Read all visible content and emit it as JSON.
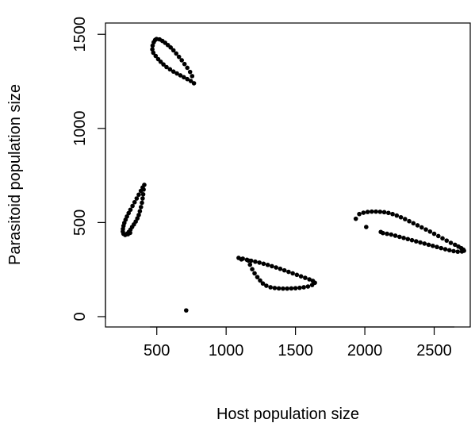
{
  "chart_data": {
    "type": "scatter",
    "xlabel": "Host population size",
    "ylabel": "Parasitoid population size",
    "xlim": [
      130,
      2760
    ],
    "ylim": [
      -55,
      1560
    ],
    "xticks": [
      500,
      1000,
      1500,
      2000,
      2500
    ],
    "yticks": [
      0,
      500,
      1000,
      1500
    ],
    "grid": false,
    "point_color": "#000000",
    "series": [
      {
        "points": [
          [
            498,
            1475
          ],
          [
            520,
            1473
          ],
          [
            540,
            1465
          ],
          [
            560,
            1455
          ],
          [
            580,
            1443
          ],
          [
            600,
            1430
          ],
          [
            620,
            1415
          ],
          [
            640,
            1398
          ],
          [
            660,
            1380
          ],
          [
            680,
            1362
          ],
          [
            700,
            1342
          ],
          [
            720,
            1322
          ],
          [
            740,
            1300
          ],
          [
            755,
            1278
          ],
          [
            768,
            1240
          ],
          [
            745,
            1252
          ],
          [
            720,
            1262
          ],
          [
            695,
            1272
          ],
          [
            670,
            1282
          ],
          [
            645,
            1292
          ],
          [
            620,
            1302
          ],
          [
            595,
            1314
          ],
          [
            570,
            1326
          ],
          [
            548,
            1340
          ],
          [
            528,
            1354
          ],
          [
            510,
            1368
          ],
          [
            492,
            1385
          ],
          [
            475,
            1402
          ],
          [
            468,
            1420
          ],
          [
            470,
            1440
          ],
          [
            478,
            1458
          ],
          [
            488,
            1470
          ],
          [
            410,
            700
          ],
          [
            405,
            675
          ],
          [
            402,
            650
          ],
          [
            398,
            628
          ],
          [
            393,
            605
          ],
          [
            386,
            582
          ],
          [
            378,
            560
          ],
          [
            370,
            540
          ],
          [
            360,
            522
          ],
          [
            348,
            505
          ],
          [
            335,
            490
          ],
          [
            322,
            476
          ],
          [
            310,
            462
          ],
          [
            298,
            450
          ],
          [
            285,
            440
          ],
          [
            272,
            434
          ],
          [
            260,
            440
          ],
          [
            255,
            452
          ],
          [
            256,
            466
          ],
          [
            260,
            482
          ],
          [
            266,
            498
          ],
          [
            275,
            515
          ],
          [
            285,
            532
          ],
          [
            297,
            550
          ],
          [
            310,
            568
          ],
          [
            325,
            588
          ],
          [
            340,
            608
          ],
          [
            355,
            628
          ],
          [
            370,
            648
          ],
          [
            385,
            668
          ],
          [
            398,
            686
          ],
          [
            292,
            438
          ],
          [
            308,
            445
          ],
          [
            1090,
            312
          ],
          [
            1120,
            308
          ],
          [
            1150,
            302
          ],
          [
            1180,
            297
          ],
          [
            1210,
            292
          ],
          [
            1240,
            287
          ],
          [
            1270,
            281
          ],
          [
            1300,
            275
          ],
          [
            1330,
            268
          ],
          [
            1360,
            261
          ],
          [
            1390,
            254
          ],
          [
            1420,
            246
          ],
          [
            1450,
            238
          ],
          [
            1480,
            230
          ],
          [
            1510,
            222
          ],
          [
            1540,
            214
          ],
          [
            1570,
            206
          ],
          [
            1600,
            198
          ],
          [
            1625,
            190
          ],
          [
            1640,
            180
          ],
          [
            1620,
            168
          ],
          [
            1590,
            160
          ],
          [
            1560,
            156
          ],
          [
            1530,
            153
          ],
          [
            1500,
            151
          ],
          [
            1470,
            150
          ],
          [
            1440,
            149
          ],
          [
            1410,
            149
          ],
          [
            1380,
            150
          ],
          [
            1350,
            152
          ],
          [
            1320,
            156
          ],
          [
            1290,
            164
          ],
          [
            1265,
            176
          ],
          [
            1245,
            192
          ],
          [
            1225,
            210
          ],
          [
            1205,
            230
          ],
          [
            1188,
            252
          ],
          [
            1172,
            276
          ],
          [
            1160,
            298
          ],
          [
            1110,
            304
          ],
          [
            1935,
            520
          ],
          [
            1960,
            545
          ],
          [
            1990,
            552
          ],
          [
            2020,
            556
          ],
          [
            2050,
            558
          ],
          [
            2080,
            558
          ],
          [
            2110,
            557
          ],
          [
            2140,
            555
          ],
          [
            2170,
            551
          ],
          [
            2200,
            545
          ],
          [
            2230,
            537
          ],
          [
            2260,
            528
          ],
          [
            2290,
            518
          ],
          [
            2320,
            507
          ],
          [
            2350,
            496
          ],
          [
            2380,
            485
          ],
          [
            2410,
            474
          ],
          [
            2440,
            463
          ],
          [
            2470,
            452
          ],
          [
            2500,
            440
          ],
          [
            2530,
            428
          ],
          [
            2560,
            416
          ],
          [
            2590,
            404
          ],
          [
            2620,
            392
          ],
          [
            2650,
            382
          ],
          [
            2675,
            372
          ],
          [
            2695,
            364
          ],
          [
            2710,
            356
          ],
          [
            2715,
            350
          ],
          [
            2700,
            346
          ],
          [
            2670,
            345
          ],
          [
            2640,
            348
          ],
          [
            2610,
            353
          ],
          [
            2580,
            358
          ],
          [
            2550,
            364
          ],
          [
            2520,
            370
          ],
          [
            2490,
            376
          ],
          [
            2460,
            382
          ],
          [
            2430,
            388
          ],
          [
            2400,
            394
          ],
          [
            2370,
            400
          ],
          [
            2340,
            406
          ],
          [
            2310,
            412
          ],
          [
            2280,
            418
          ],
          [
            2250,
            424
          ],
          [
            2220,
            430
          ],
          [
            2190,
            436
          ],
          [
            2160,
            440
          ],
          [
            2130,
            444
          ],
          [
            2115,
            450
          ],
          [
            2010,
            476
          ],
          [
            712,
            33
          ]
        ]
      }
    ]
  }
}
